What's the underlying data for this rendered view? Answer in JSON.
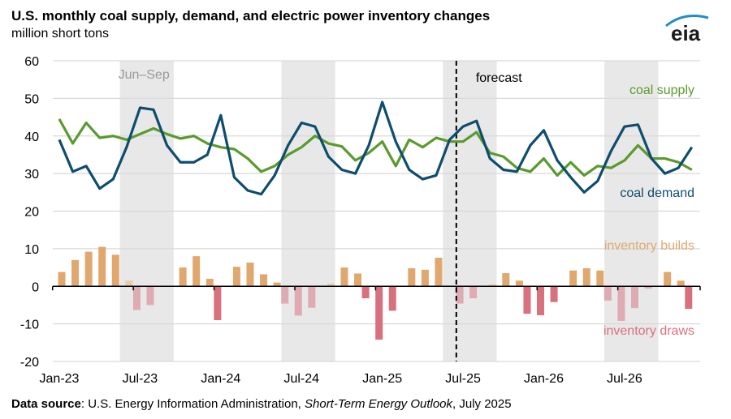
{
  "chart_data": {
    "type": "line+bar",
    "title": "U.S. monthly coal supply, demand, and electric power inventory changes",
    "ylabel": "million short tons",
    "ylim": [
      -20,
      60
    ],
    "yticks": [
      -20,
      -10,
      0,
      10,
      20,
      30,
      40,
      50,
      60
    ],
    "grid": true,
    "x": [
      "Jan-23",
      "Feb-23",
      "Mar-23",
      "Apr-23",
      "May-23",
      "Jun-23",
      "Jul-23",
      "Aug-23",
      "Sep-23",
      "Oct-23",
      "Nov-23",
      "Dec-23",
      "Jan-24",
      "Feb-24",
      "Mar-24",
      "Apr-24",
      "May-24",
      "Jun-24",
      "Jul-24",
      "Aug-24",
      "Sep-24",
      "Oct-24",
      "Nov-24",
      "Dec-24",
      "Jan-25",
      "Feb-25",
      "Mar-25",
      "Apr-25",
      "May-25",
      "Jun-25",
      "Jul-25",
      "Aug-25",
      "Sep-25",
      "Oct-25",
      "Nov-25",
      "Dec-25",
      "Jan-26",
      "Feb-26",
      "Mar-26",
      "Apr-26",
      "May-26",
      "Jun-26",
      "Jul-26",
      "Aug-26",
      "Sep-26",
      "Oct-26",
      "Nov-26",
      "Dec-26"
    ],
    "xtick_labels": [
      "Jan-23",
      "Jul-23",
      "Jan-24",
      "Jul-24",
      "Jan-25",
      "Jul-25",
      "Jan-26",
      "Jul-26"
    ],
    "series": [
      {
        "name": "coal supply",
        "type": "line",
        "color": "#5a9a2e",
        "values": [
          44.5,
          38,
          43.5,
          39.5,
          40,
          39,
          40.5,
          42,
          40.5,
          39.3,
          40,
          38,
          37,
          36.5,
          34,
          30.5,
          32,
          35,
          37,
          40,
          38,
          37.2,
          33.5,
          35.5,
          38.5,
          32,
          39,
          37,
          39.5,
          38.5,
          38.5,
          41,
          35.5,
          34.5,
          31.5,
          30.5,
          34,
          29.5,
          33,
          29.5,
          32,
          31.5,
          33.5,
          37.5,
          34,
          34,
          33,
          31
        ]
      },
      {
        "name": "coal demand",
        "type": "line",
        "color": "#0e4d6e",
        "values": [
          39,
          30.5,
          32,
          26,
          28.5,
          37,
          47.5,
          47,
          37.5,
          33,
          33,
          35,
          45.5,
          29,
          25.5,
          24.5,
          29.5,
          37.5,
          43.5,
          42.5,
          34.5,
          31,
          30,
          37.5,
          49,
          38.5,
          31,
          28.5,
          29.5,
          39,
          42.5,
          44,
          34,
          31,
          30.5,
          37.5,
          41.5,
          33.5,
          29,
          25,
          28,
          36,
          42.5,
          43,
          34,
          30,
          31.5,
          37
        ]
      },
      {
        "name": "inventory change",
        "type": "bar",
        "values": [
          3.8,
          7,
          9.2,
          10.5,
          8.4,
          1.5,
          -6.3,
          -5,
          0,
          5,
          8,
          2,
          -9,
          5.2,
          6.3,
          3.2,
          1,
          -4.6,
          -7.8,
          -5.7,
          0.7,
          5,
          3.4,
          -3.2,
          -14.2,
          -6.5,
          4.8,
          4.4,
          7.6,
          0,
          -4.6,
          -3.2,
          0.5,
          3.5,
          1.5,
          -7.3,
          -7.7,
          -4.2,
          4.2,
          4.8,
          4.2,
          -3.8,
          -9.2,
          -5.8,
          -0.6,
          3.8,
          1.5,
          -6
        ]
      }
    ],
    "legend": {
      "supply": "coal supply",
      "demand": "coal demand",
      "builds": "inventory builds",
      "draws": "inventory draws"
    },
    "annotations": {
      "season": "Jun–Sep",
      "forecast": "forecast"
    },
    "forecast_start": "Jul-25",
    "colors": {
      "builds": "#e0a86e",
      "builds_summer": "#ecc9a8",
      "draws": "#d9707e",
      "draws_summer": "#e0aab2",
      "shade": "#e8e8e8"
    }
  },
  "header": {
    "title": "U.S. monthly coal supply, demand, and electric power inventory changes",
    "units": "million short tons"
  },
  "logo": "eia",
  "source": {
    "label": "Data source",
    "text1": ": U.S. Energy Information Administration, ",
    "italic": "Short-Term Energy Outlook",
    "text2": ", July 2025"
  }
}
